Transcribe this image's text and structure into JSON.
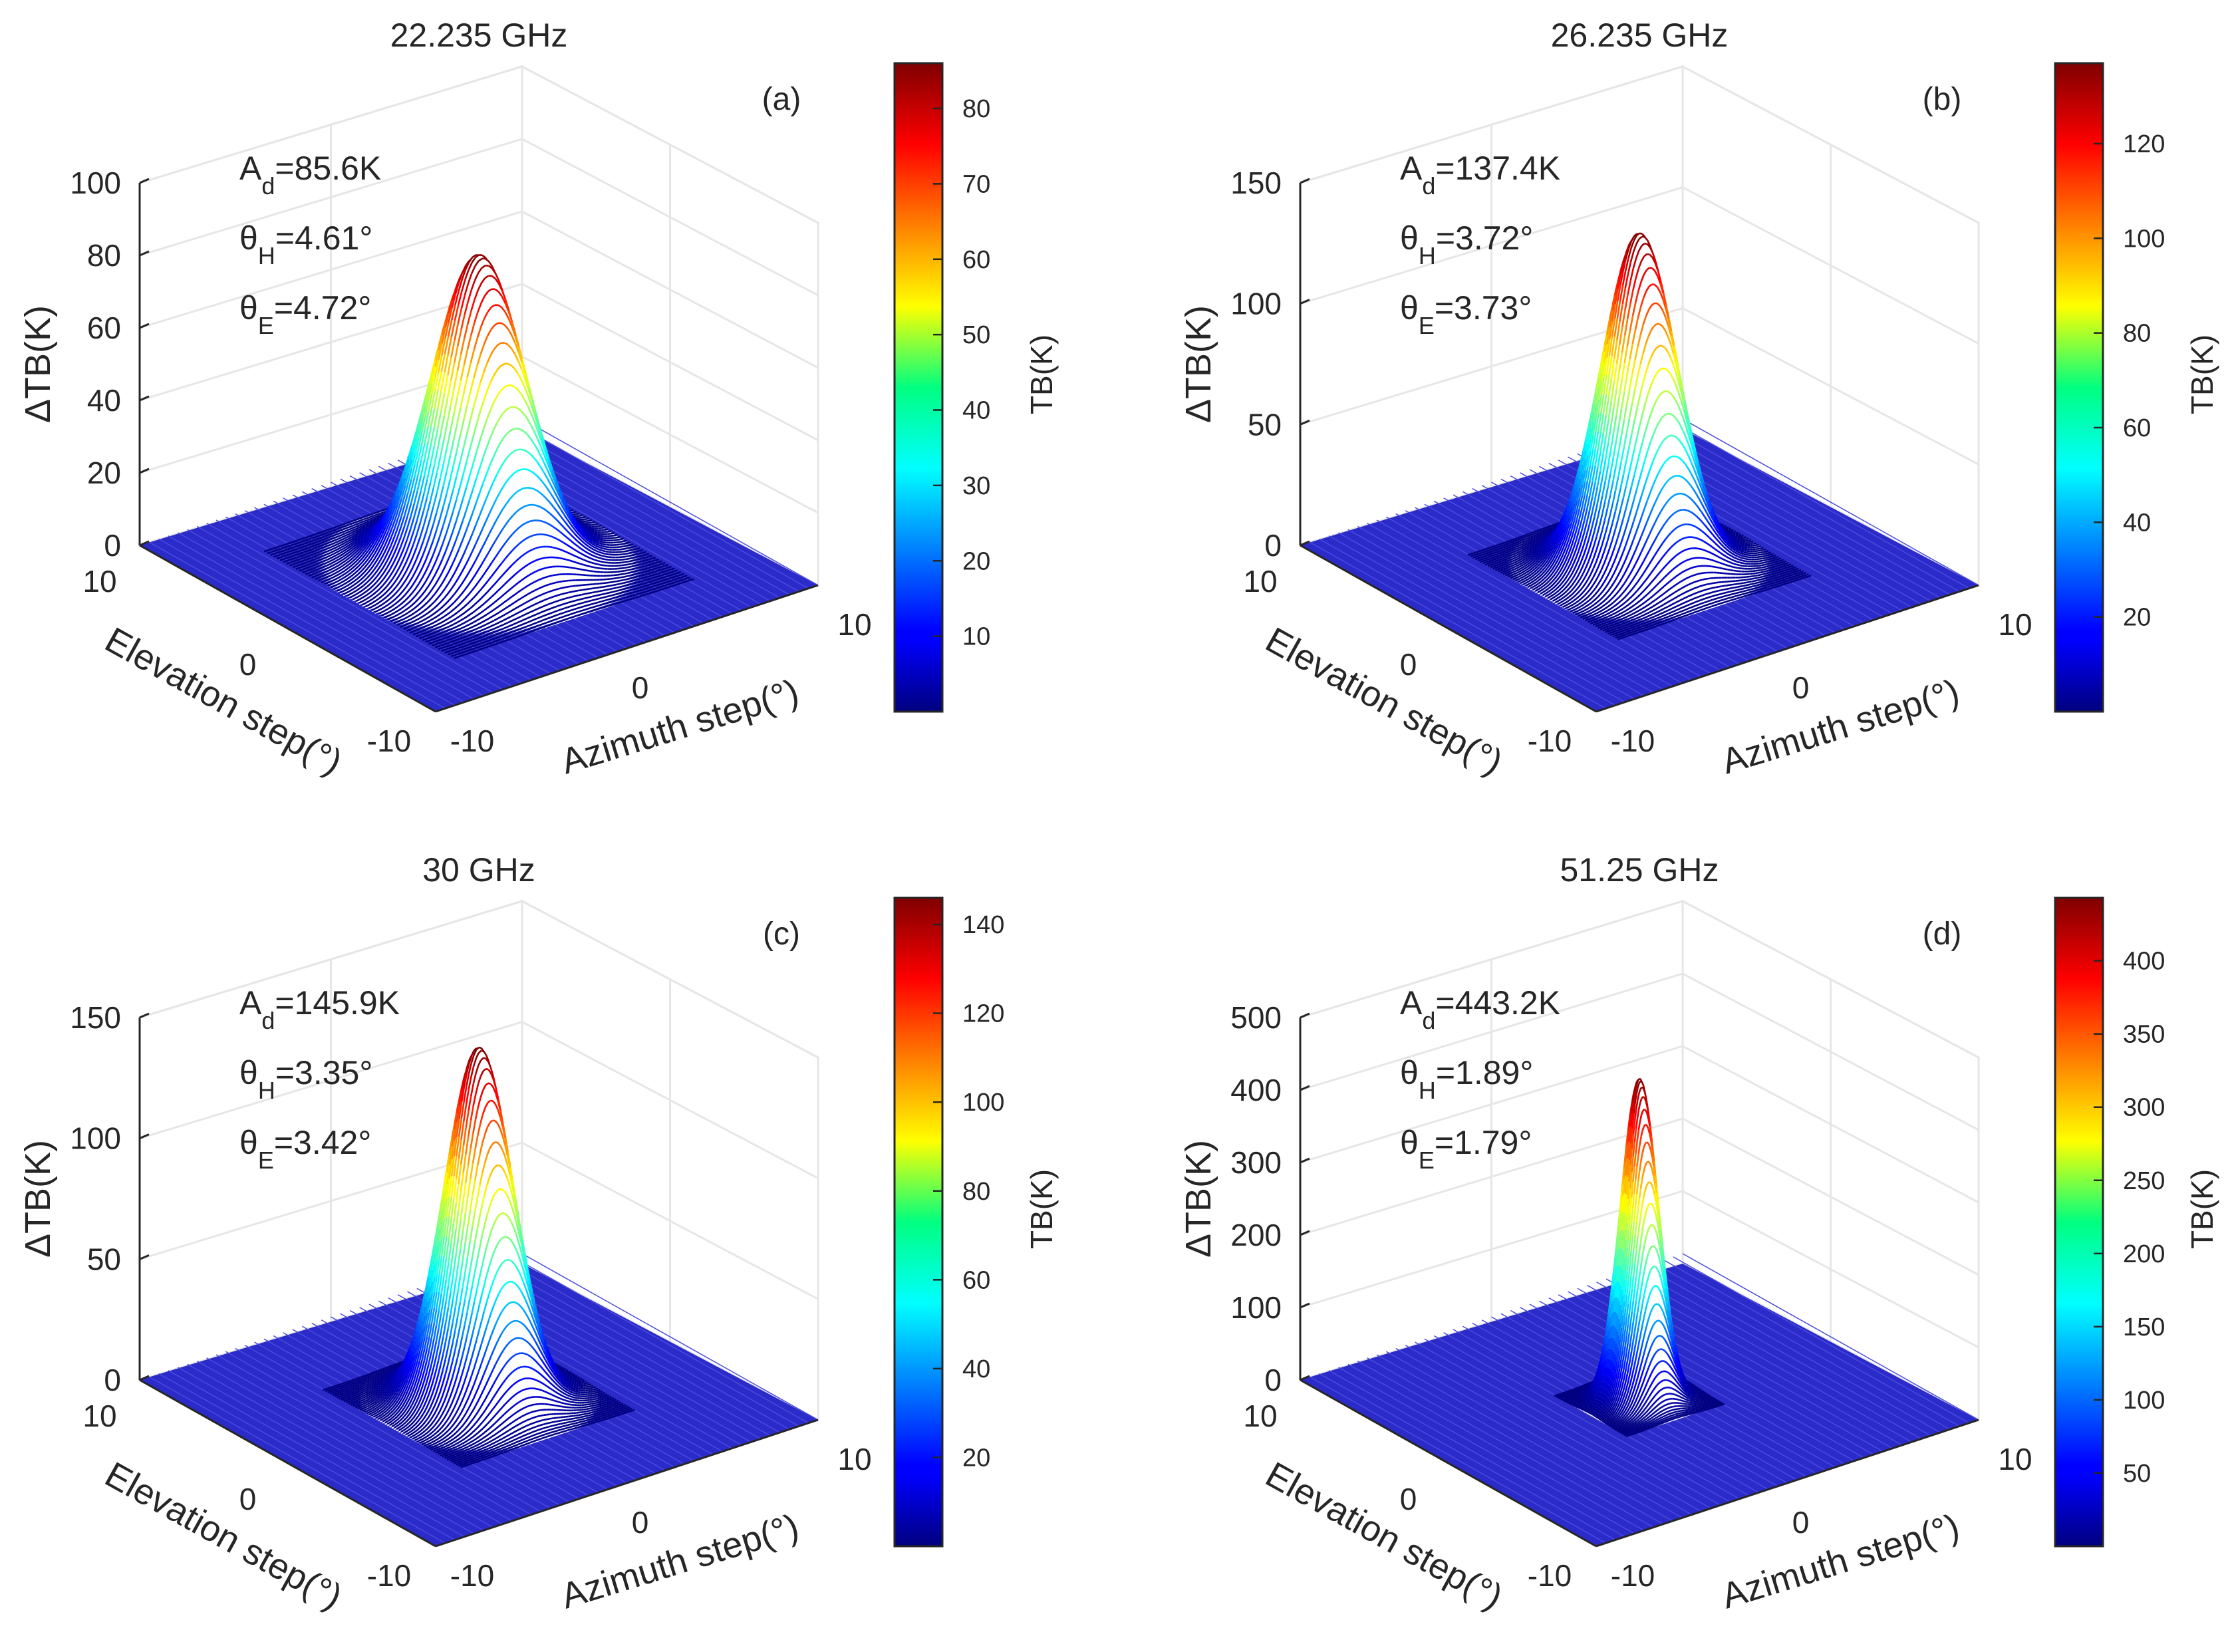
{
  "colors": {
    "text": "#262626",
    "box_edge": "#dddddd",
    "grid": "#e6e6e6",
    "axis": "#262626",
    "floor": "#2b2bc9"
  },
  "chart_data": [
    {
      "type": "surface",
      "label": "(a)",
      "title": "22.235 GHz",
      "xlabel": "Azimuth step(°)",
      "ylabel": "Elevation step(°)",
      "zlabel": "ΔTB(K)",
      "xticks": [
        "-10",
        "0",
        "10"
      ],
      "yticks": [
        "-10",
        "0",
        "10"
      ],
      "zlim": [
        0,
        100
      ],
      "zticks": [
        "0",
        "20",
        "40",
        "60",
        "80",
        "100"
      ],
      "colorbar": {
        "label": "TB(K)",
        "range": [
          0,
          86
        ],
        "ticks": [
          "10",
          "20",
          "30",
          "40",
          "50",
          "60",
          "70",
          "80"
        ]
      },
      "annotations": {
        "amp_main": "A",
        "amp_sub": "d",
        "amp_value": "=85.6K",
        "th_main": "θ",
        "th_sub": "H",
        "th_value": "=4.61°",
        "te_main": "θ",
        "te_sub": "E",
        "te_value": "=4.72°"
      },
      "peak": 85.6,
      "theta_h": 4.61,
      "theta_e": 4.72
    },
    {
      "type": "surface",
      "label": "(b)",
      "title": "26.235 GHz",
      "xlabel": "Azimuth step(°)",
      "ylabel": "Elevation step(°)",
      "zlabel": "ΔTB(K)",
      "xticks": [
        "-10",
        "0",
        "10"
      ],
      "yticks": [
        "-10",
        "0",
        "10"
      ],
      "zlim": [
        0,
        150
      ],
      "zticks": [
        "0",
        "50",
        "100",
        "150"
      ],
      "colorbar": {
        "label": "TB(K)",
        "range": [
          0,
          137
        ],
        "ticks": [
          "20",
          "40",
          "60",
          "80",
          "100",
          "120"
        ]
      },
      "annotations": {
        "amp_main": "A",
        "amp_sub": "d",
        "amp_value": "=137.4K",
        "th_main": "θ",
        "th_sub": "H",
        "th_value": "=3.72°",
        "te_main": "θ",
        "te_sub": "E",
        "te_value": "=3.73°"
      },
      "peak": 137.4,
      "theta_h": 3.72,
      "theta_e": 3.73
    },
    {
      "type": "surface",
      "label": "(c)",
      "title": "30 GHz",
      "xlabel": "Azimuth step(°)",
      "ylabel": "Elevation step(°)",
      "zlabel": "ΔTB(K)",
      "xticks": [
        "-10",
        "0",
        "10"
      ],
      "yticks": [
        "-10",
        "0",
        "10"
      ],
      "zlim": [
        0,
        150
      ],
      "zticks": [
        "0",
        "50",
        "100",
        "150"
      ],
      "colorbar": {
        "label": "TB(K)",
        "range": [
          0,
          146
        ],
        "ticks": [
          "20",
          "40",
          "60",
          "80",
          "100",
          "120",
          "140"
        ]
      },
      "annotations": {
        "amp_main": "A",
        "amp_sub": "d",
        "amp_value": "=145.9K",
        "th_main": "θ",
        "th_sub": "H",
        "th_value": "=3.35°",
        "te_main": "θ",
        "te_sub": "E",
        "te_value": "=3.42°"
      },
      "peak": 145.9,
      "theta_h": 3.35,
      "theta_e": 3.42
    },
    {
      "type": "surface",
      "label": "(d)",
      "title": "51.25 GHz",
      "xlabel": "Azimuth step(°)",
      "ylabel": "Elevation step(°)",
      "zlabel": "ΔTB(K)",
      "xticks": [
        "-10",
        "0",
        "10"
      ],
      "yticks": [
        "-10",
        "0",
        "10"
      ],
      "zlim": [
        0,
        500
      ],
      "zticks": [
        "0",
        "100",
        "200",
        "300",
        "400",
        "500"
      ],
      "colorbar": {
        "label": "TB(K)",
        "range": [
          0,
          443
        ],
        "ticks": [
          "50",
          "100",
          "150",
          "200",
          "250",
          "300",
          "350",
          "400"
        ]
      },
      "annotations": {
        "amp_main": "A",
        "amp_sub": "d",
        "amp_value": "=443.2K",
        "th_main": "θ",
        "th_sub": "H",
        "th_value": "=1.89°",
        "te_main": "θ",
        "te_sub": "E",
        "te_value": "=1.79°"
      },
      "peak": 443.2,
      "theta_h": 1.89,
      "theta_e": 1.79
    }
  ]
}
